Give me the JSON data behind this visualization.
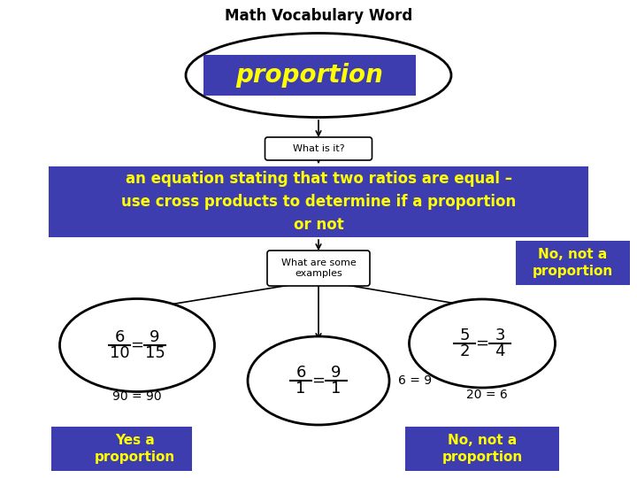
{
  "title": "Math Vocabulary Word",
  "title_fontsize": 12,
  "title_fontweight": "bold",
  "bg_color": "#ffffff",
  "proportion_word": "proportion",
  "proportion_word_color": "#ffff00",
  "proportion_box_color": "#3d3db0",
  "what_is_it_label": "What is it?",
  "what_is_it_fontsize": 8,
  "definition_text": "an equation stating that two ratios are equal –\nuse cross products to determine if a proportion\nor not",
  "definition_color": "#ffff00",
  "definition_box_color": "#3d3db0",
  "definition_fontsize": 12,
  "what_are_examples_label": "What are some\nexamples",
  "what_are_examples_fontsize": 8,
  "ellipse1_eq_top": "6",
  "ellipse1_eq_bottom": "10",
  "ellipse1_eq_top2": "9",
  "ellipse1_eq_bottom2": "15",
  "ellipse1_result": "90 = 90",
  "ellipse1_label": "Yes a\nproportion",
  "ellipse1_label_color": "#ffff00",
  "ellipse1_box_color": "#3d3db0",
  "ellipse2_eq_top": "6",
  "ellipse2_eq_bottom": "1",
  "ellipse2_eq_top2": "9",
  "ellipse2_eq_bottom2": "1",
  "ellipse2_result": "6 = 9",
  "ellipse2_label": "No, not a\nproportion",
  "ellipse2_label_color": "#ffff00",
  "ellipse2_box_color": "#3d3db0",
  "ellipse3_eq_top": "5",
  "ellipse3_eq_bottom": "2",
  "ellipse3_eq_top2": "3",
  "ellipse3_eq_bottom2": "4",
  "ellipse3_result": "20 = 6",
  "ellipse3_label": "No, not a\nproportion",
  "ellipse3_label_color": "#ffff00",
  "ellipse3_box_color": "#3d3db0",
  "arrow_color": "#000000"
}
